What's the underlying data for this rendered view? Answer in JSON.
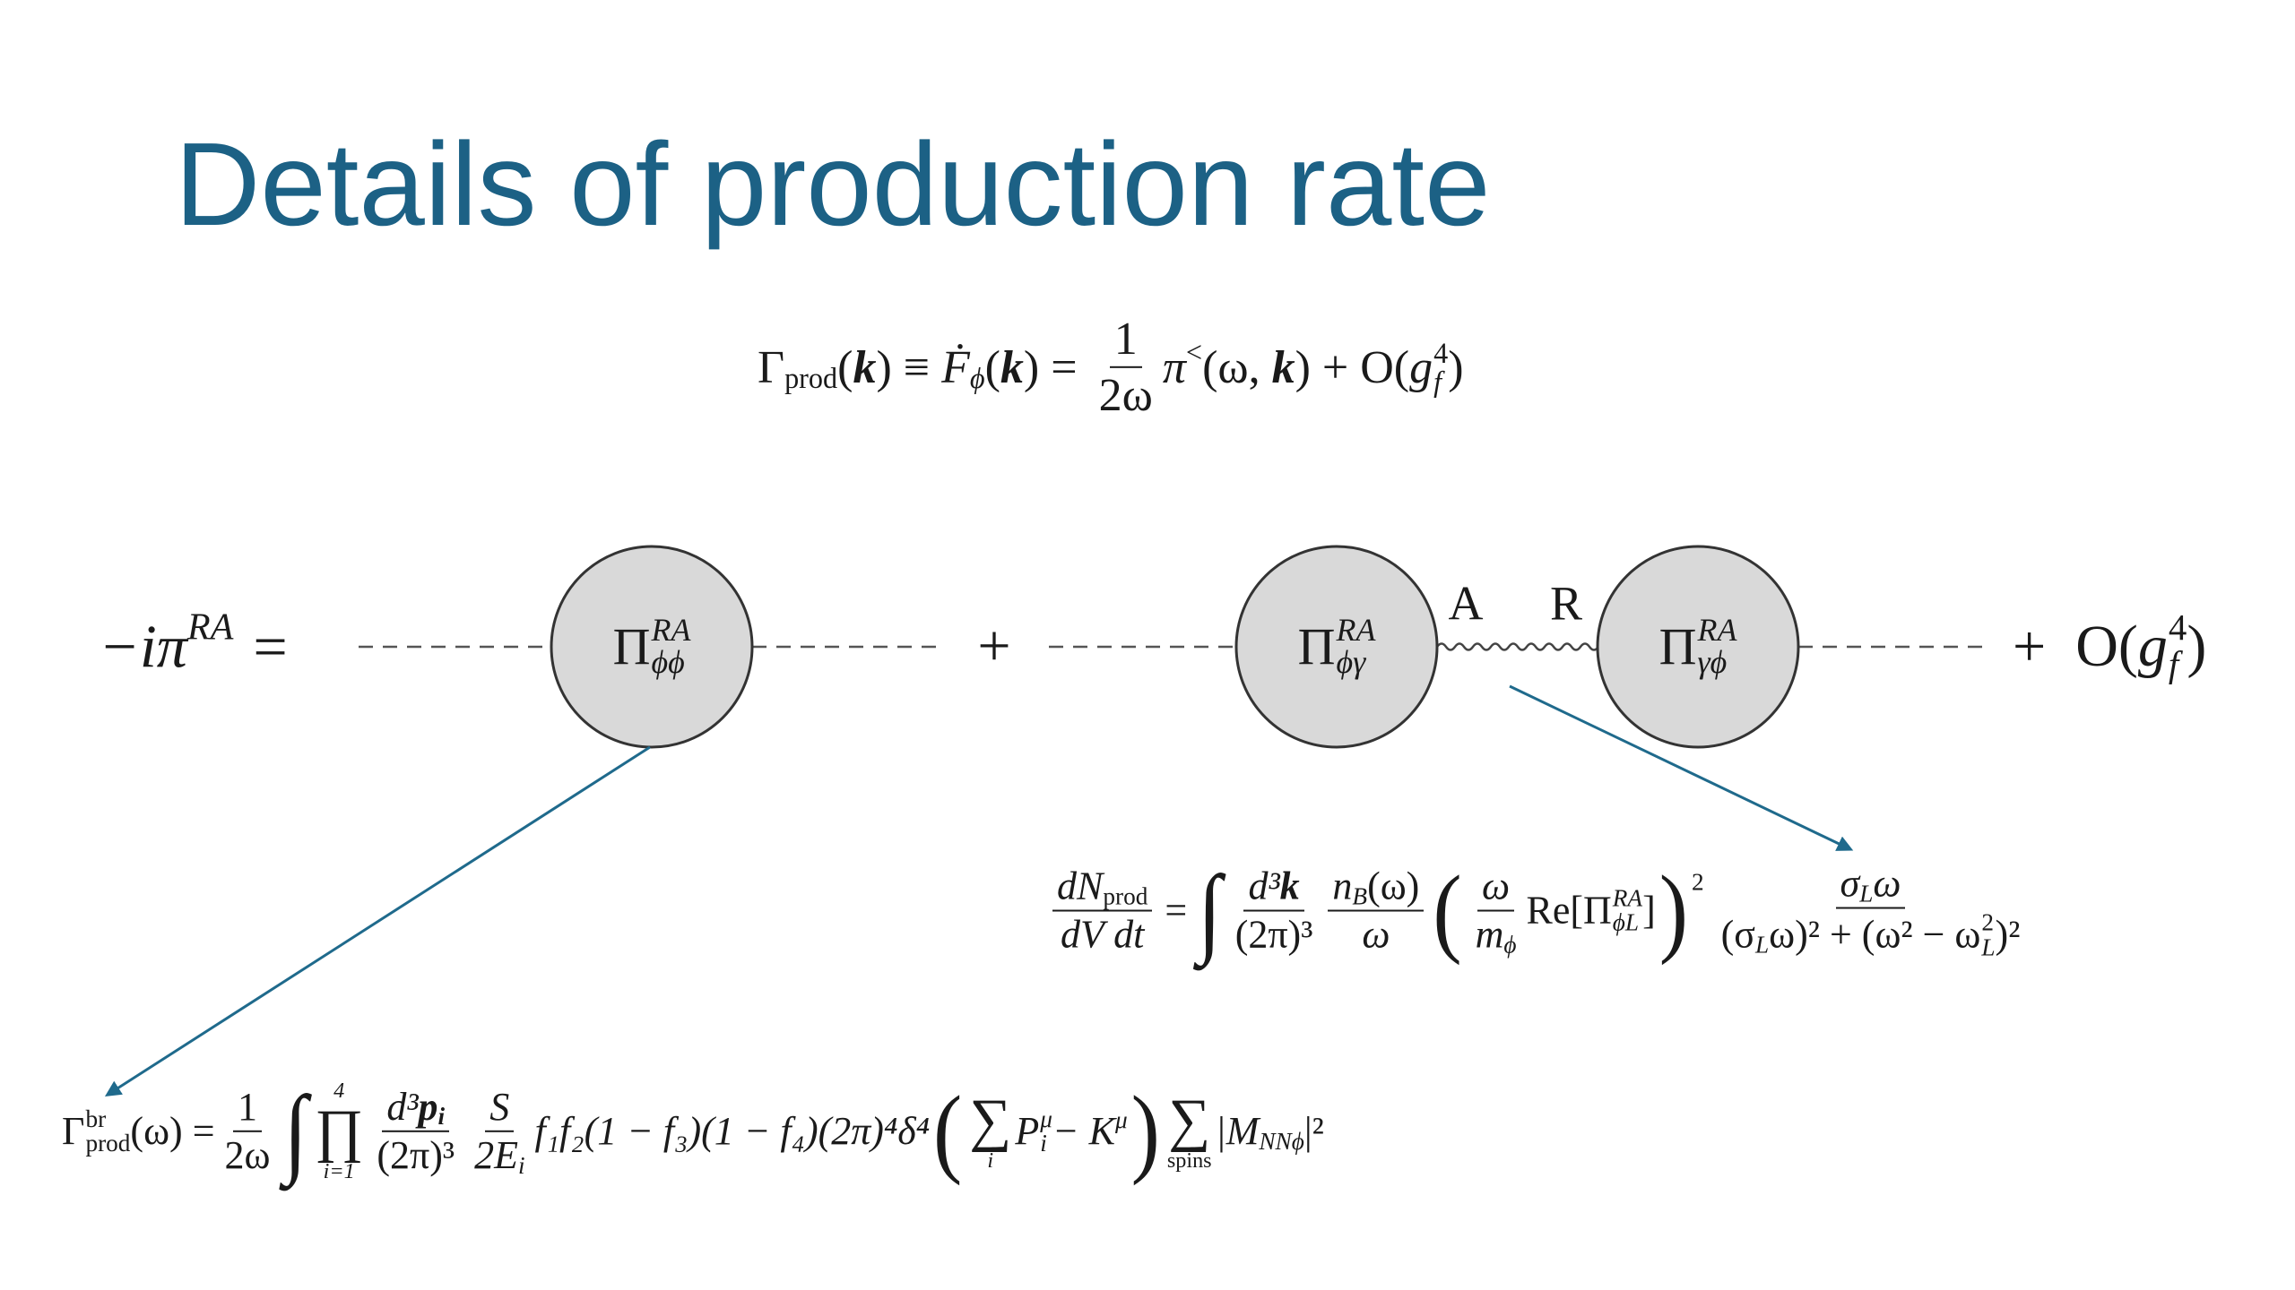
{
  "title": "Details of production rate",
  "eq1": [
    "Γ",
    "prod",
    "(",
    "k",
    ") ≡ ",
    "Ḟ",
    "ϕ",
    "(",
    "k",
    ") = ",
    "1",
    "2ω",
    "π",
    "<",
    "(ω, ",
    "k",
    ") + O(",
    "g",
    "4",
    "f",
    ")"
  ],
  "diagram": {
    "lhs": [
      "−iπ",
      "RA",
      "="
    ],
    "phi_phi": [
      "Π",
      "RA",
      "ϕϕ"
    ],
    "plus": "+",
    "phi_gamma": [
      "Π",
      "RA",
      "ϕγ"
    ],
    "label_a": "A",
    "label_r": "R",
    "gamma_phi": [
      "Π",
      "RA",
      "γϕ"
    ],
    "rhs": [
      "+  O(",
      "g",
      "4",
      "f",
      ")"
    ]
  },
  "eq2": [
    "dN",
    "prod",
    "dV dt",
    "=",
    "∫",
    "d³",
    "k",
    "(2π)³",
    "n",
    "B",
    "(ω)",
    "ω",
    "(",
    "ω",
    "m",
    "ϕ",
    "Re[Π",
    "RA",
    "ϕL",
    "]",
    ")",
    "2",
    "σ",
    "L",
    "ω",
    "(σ",
    "L",
    "ω)² + (ω² − ω",
    "2",
    "L",
    ")²"
  ],
  "eq3": [
    "Γ",
    "br",
    "prod",
    "(ω) =",
    "1",
    "2ω",
    "∫",
    "4",
    "∏",
    "i=1",
    "d³",
    "p",
    "i",
    "(2π)³",
    "S",
    "2E",
    "i",
    "f₁f₂(1 − f₃)(1 − f₄)(2π)⁴δ⁴",
    "(",
    "∑",
    "i",
    "P",
    "μ",
    "i",
    "− K",
    "μ",
    ")",
    "∑",
    "spins",
    "|M",
    "NNϕ",
    "|²"
  ]
}
